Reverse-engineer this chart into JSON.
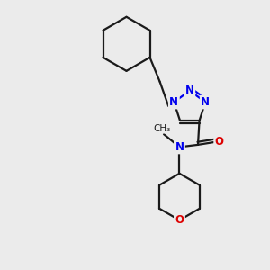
{
  "bg_color": "#ebebeb",
  "bond_color": "#1a1a1a",
  "N_color": "#0000ee",
  "O_color": "#dd0000",
  "line_width": 1.6,
  "font_size_atom": 8.5,
  "figsize": [
    3.0,
    3.0
  ],
  "dpi": 100,
  "xlim": [
    0.15,
    0.85
  ],
  "ylim": [
    0.03,
    0.97
  ]
}
